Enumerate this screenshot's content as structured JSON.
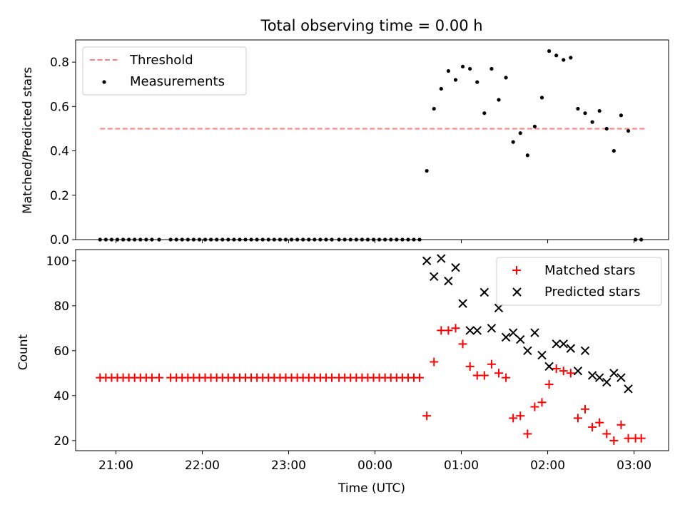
{
  "chart_data": [
    {
      "type": "scatter",
      "title": "Total observing time = 0.00 h",
      "xlabel": "",
      "ylabel": "Matched/Predicted stars",
      "xlim": [
        "20:32",
        "03:24"
      ],
      "ylim": [
        0,
        0.9
      ],
      "x_ticks": [
        "21:00",
        "22:00",
        "23:00",
        "00:00",
        "01:00",
        "02:00",
        "03:00"
      ],
      "y_ticks": [
        "0.0",
        "0.2",
        "0.4",
        "0.6",
        "0.8"
      ],
      "legend_position": "top-left",
      "grid": false,
      "series": [
        {
          "name": "Threshold",
          "kind": "dashed-line",
          "color": "#ff7f7f",
          "points": [
            [
              "20:49",
              0.5
            ],
            [
              "03:09",
              0.5
            ]
          ]
        },
        {
          "name": "Measurements",
          "kind": "scatter",
          "color": "#000000",
          "points": [
            [
              "20:49",
              0.0
            ],
            [
              "20:53",
              0.0
            ],
            [
              "20:57",
              0.0
            ],
            [
              "21:01",
              0.0
            ],
            [
              "21:05",
              0.0
            ],
            [
              "21:09",
              0.0
            ],
            [
              "21:13",
              0.0
            ],
            [
              "21:17",
              0.0
            ],
            [
              "21:21",
              0.0
            ],
            [
              "21:25",
              0.0
            ],
            [
              "21:30",
              0.0
            ],
            [
              "21:38",
              0.0
            ],
            [
              "21:42",
              0.0
            ],
            [
              "21:46",
              0.0
            ],
            [
              "21:50",
              0.0
            ],
            [
              "21:54",
              0.0
            ],
            [
              "21:58",
              0.0
            ],
            [
              "22:02",
              0.0
            ],
            [
              "22:06",
              0.0
            ],
            [
              "22:10",
              0.0
            ],
            [
              "22:14",
              0.0
            ],
            [
              "22:18",
              0.0
            ],
            [
              "22:22",
              0.0
            ],
            [
              "22:26",
              0.0
            ],
            [
              "22:30",
              0.0
            ],
            [
              "22:34",
              0.0
            ],
            [
              "22:38",
              0.0
            ],
            [
              "22:42",
              0.0
            ],
            [
              "22:46",
              0.0
            ],
            [
              "22:50",
              0.0
            ],
            [
              "22:54",
              0.0
            ],
            [
              "22:58",
              0.0
            ],
            [
              "23:02",
              0.0
            ],
            [
              "23:06",
              0.0
            ],
            [
              "23:10",
              0.0
            ],
            [
              "23:14",
              0.0
            ],
            [
              "23:18",
              0.0
            ],
            [
              "23:22",
              0.0
            ],
            [
              "23:26",
              0.0
            ],
            [
              "23:30",
              0.0
            ],
            [
              "23:35",
              0.0
            ],
            [
              "23:39",
              0.0
            ],
            [
              "23:43",
              0.0
            ],
            [
              "23:47",
              0.0
            ],
            [
              "23:51",
              0.0
            ],
            [
              "23:55",
              0.0
            ],
            [
              "23:59",
              0.0
            ],
            [
              "00:03",
              0.0
            ],
            [
              "00:07",
              0.0
            ],
            [
              "00:11",
              0.0
            ],
            [
              "00:15",
              0.0
            ],
            [
              "00:19",
              0.0
            ],
            [
              "00:23",
              0.0
            ],
            [
              "00:27",
              0.0
            ],
            [
              "00:31",
              0.0
            ],
            [
              "00:36",
              0.31
            ],
            [
              "00:41",
              0.59
            ],
            [
              "00:46",
              0.68
            ],
            [
              "00:51",
              0.76
            ],
            [
              "00:56",
              0.72
            ],
            [
              "01:01",
              0.78
            ],
            [
              "01:06",
              0.77
            ],
            [
              "01:11",
              0.71
            ],
            [
              "01:16",
              0.57
            ],
            [
              "01:21",
              0.77
            ],
            [
              "01:26",
              0.63
            ],
            [
              "01:31",
              0.73
            ],
            [
              "01:36",
              0.44
            ],
            [
              "01:41",
              0.48
            ],
            [
              "01:46",
              0.38
            ],
            [
              "01:51",
              0.51
            ],
            [
              "01:56",
              0.64
            ],
            [
              "02:01",
              0.85
            ],
            [
              "02:06",
              0.83
            ],
            [
              "02:11",
              0.81
            ],
            [
              "02:16",
              0.82
            ],
            [
              "02:21",
              0.59
            ],
            [
              "02:26",
              0.57
            ],
            [
              "02:31",
              0.53
            ],
            [
              "02:36",
              0.58
            ],
            [
              "02:41",
              0.5
            ],
            [
              "02:46",
              0.4
            ],
            [
              "02:51",
              0.56
            ],
            [
              "02:56",
              0.49
            ],
            [
              "03:01",
              0.0
            ],
            [
              "03:05",
              0.0
            ]
          ]
        }
      ]
    },
    {
      "type": "scatter",
      "title": "",
      "xlabel": "Time (UTC)",
      "ylabel": "Count",
      "xlim": [
        "20:32",
        "03:24"
      ],
      "ylim": [
        15.5,
        105
      ],
      "x_ticks": [
        "21:00",
        "22:00",
        "23:00",
        "00:00",
        "01:00",
        "02:00",
        "03:00"
      ],
      "y_ticks": [
        "20",
        "40",
        "60",
        "80",
        "100"
      ],
      "legend_position": "top-right",
      "grid": false,
      "series": [
        {
          "name": "Matched stars",
          "kind": "plus",
          "color": "#ff0000",
          "points": [
            [
              "20:49",
              48
            ],
            [
              "20:53",
              48
            ],
            [
              "20:57",
              48
            ],
            [
              "21:01",
              48
            ],
            [
              "21:05",
              48
            ],
            [
              "21:09",
              48
            ],
            [
              "21:13",
              48
            ],
            [
              "21:17",
              48
            ],
            [
              "21:21",
              48
            ],
            [
              "21:25",
              48
            ],
            [
              "21:30",
              48
            ],
            [
              "21:38",
              48
            ],
            [
              "21:42",
              48
            ],
            [
              "21:46",
              48
            ],
            [
              "21:50",
              48
            ],
            [
              "21:54",
              48
            ],
            [
              "21:58",
              48
            ],
            [
              "22:02",
              48
            ],
            [
              "22:06",
              48
            ],
            [
              "22:10",
              48
            ],
            [
              "22:14",
              48
            ],
            [
              "22:18",
              48
            ],
            [
              "22:22",
              48
            ],
            [
              "22:26",
              48
            ],
            [
              "22:30",
              48
            ],
            [
              "22:34",
              48
            ],
            [
              "22:38",
              48
            ],
            [
              "22:42",
              48
            ],
            [
              "22:46",
              48
            ],
            [
              "22:50",
              48
            ],
            [
              "22:54",
              48
            ],
            [
              "22:58",
              48
            ],
            [
              "23:02",
              48
            ],
            [
              "23:06",
              48
            ],
            [
              "23:10",
              48
            ],
            [
              "23:14",
              48
            ],
            [
              "23:18",
              48
            ],
            [
              "23:22",
              48
            ],
            [
              "23:26",
              48
            ],
            [
              "23:30",
              48
            ],
            [
              "23:35",
              48
            ],
            [
              "23:39",
              48
            ],
            [
              "23:43",
              48
            ],
            [
              "23:47",
              48
            ],
            [
              "23:51",
              48
            ],
            [
              "23:55",
              48
            ],
            [
              "23:59",
              48
            ],
            [
              "00:03",
              48
            ],
            [
              "00:07",
              48
            ],
            [
              "00:11",
              48
            ],
            [
              "00:15",
              48
            ],
            [
              "00:19",
              48
            ],
            [
              "00:23",
              48
            ],
            [
              "00:27",
              48
            ],
            [
              "00:31",
              48
            ],
            [
              "00:36",
              31
            ],
            [
              "00:41",
              55
            ],
            [
              "00:46",
              69
            ],
            [
              "00:51",
              69
            ],
            [
              "00:56",
              70
            ],
            [
              "01:01",
              63
            ],
            [
              "01:06",
              53
            ],
            [
              "01:11",
              49
            ],
            [
              "01:16",
              49
            ],
            [
              "01:21",
              54
            ],
            [
              "01:26",
              50
            ],
            [
              "01:31",
              48
            ],
            [
              "01:36",
              30
            ],
            [
              "01:41",
              31
            ],
            [
              "01:46",
              23
            ],
            [
              "01:51",
              35
            ],
            [
              "01:56",
              37
            ],
            [
              "02:01",
              45
            ],
            [
              "02:06",
              52
            ],
            [
              "02:11",
              51
            ],
            [
              "02:16",
              50
            ],
            [
              "02:21",
              30
            ],
            [
              "02:26",
              34
            ],
            [
              "02:31",
              26
            ],
            [
              "02:36",
              28
            ],
            [
              "02:41",
              23
            ],
            [
              "02:46",
              20
            ],
            [
              "02:51",
              27
            ],
            [
              "02:56",
              21
            ],
            [
              "03:01",
              21
            ],
            [
              "03:05",
              21
            ]
          ]
        },
        {
          "name": "Predicted stars",
          "kind": "x",
          "color": "#000000",
          "points": [
            [
              "00:36",
              100
            ],
            [
              "00:41",
              93
            ],
            [
              "00:46",
              101
            ],
            [
              "00:51",
              91
            ],
            [
              "00:56",
              97
            ],
            [
              "01:01",
              81
            ],
            [
              "01:06",
              69
            ],
            [
              "01:11",
              69
            ],
            [
              "01:16",
              86
            ],
            [
              "01:21",
              70
            ],
            [
              "01:26",
              79
            ],
            [
              "01:31",
              66
            ],
            [
              "01:36",
              68
            ],
            [
              "01:41",
              65
            ],
            [
              "01:46",
              60
            ],
            [
              "01:51",
              68
            ],
            [
              "01:56",
              58
            ],
            [
              "02:01",
              53
            ],
            [
              "02:06",
              63
            ],
            [
              "02:11",
              63
            ],
            [
              "02:16",
              61
            ],
            [
              "02:21",
              51
            ],
            [
              "02:26",
              60
            ],
            [
              "02:31",
              49
            ],
            [
              "02:36",
              48
            ],
            [
              "02:41",
              46
            ],
            [
              "02:46",
              50
            ],
            [
              "02:51",
              48
            ],
            [
              "02:56",
              43
            ]
          ]
        }
      ]
    }
  ]
}
